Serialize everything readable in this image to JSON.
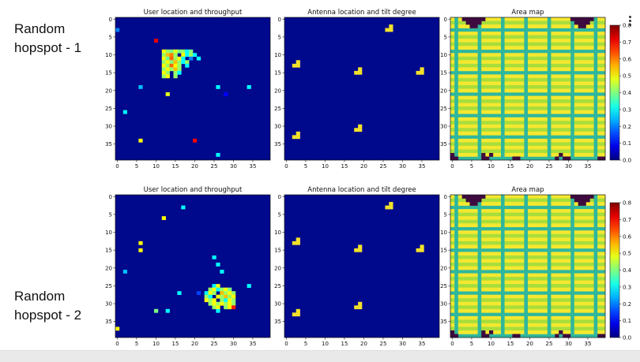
{
  "row_labels": [
    {
      "line1": "Random",
      "line2": "hopspot - 1"
    },
    {
      "line1": "Random",
      "line2": "hopspot - 2"
    }
  ],
  "colors": {
    "background_cell": "#00098c",
    "antenna": "#f2e12b",
    "area_a": "#f5e82f",
    "area_b": "#a8de3c",
    "area_c": "#2fb79d",
    "area_dark": "#3d0a3f"
  },
  "colormap": "jet",
  "icons": [
    "menu-dots-icon"
  ],
  "chart_data": [
    {
      "type": "heatmap",
      "row": 1,
      "title": "User location and throughput",
      "xlim": [
        0,
        39
      ],
      "ylim": [
        39,
        0
      ],
      "xticks": [
        0,
        5,
        10,
        15,
        20,
        25,
        30,
        35
      ],
      "yticks": [
        0,
        5,
        10,
        15,
        20,
        25,
        30,
        35
      ],
      "cells": [
        {
          "x": 0,
          "y": 3,
          "v": 0.2
        },
        {
          "x": 10,
          "y": 6,
          "v": 0.72
        },
        {
          "x": 12,
          "y": 9,
          "v": 0.5
        },
        {
          "x": 13,
          "y": 9,
          "v": 0.42
        },
        {
          "x": 14,
          "y": 9,
          "v": 0.4
        },
        {
          "x": 15,
          "y": 9,
          "v": 0.48
        },
        {
          "x": 16,
          "y": 9,
          "v": 0.4
        },
        {
          "x": 17,
          "y": 9,
          "v": 0.42
        },
        {
          "x": 18,
          "y": 9,
          "v": 0.3
        },
        {
          "x": 19,
          "y": 9,
          "v": 0.4
        },
        {
          "x": 12,
          "y": 10,
          "v": 0.42
        },
        {
          "x": 13,
          "y": 10,
          "v": 0.55
        },
        {
          "x": 14,
          "y": 10,
          "v": 0.6
        },
        {
          "x": 15,
          "y": 10,
          "v": 0.42
        },
        {
          "x": 17,
          "y": 10,
          "v": 0.5
        },
        {
          "x": 18,
          "y": 10,
          "v": 0.3
        },
        {
          "x": 19,
          "y": 10,
          "v": 0.42
        },
        {
          "x": 20,
          "y": 10,
          "v": 0.3
        },
        {
          "x": 12,
          "y": 11,
          "v": 0.5
        },
        {
          "x": 13,
          "y": 11,
          "v": 0.38
        },
        {
          "x": 14,
          "y": 11,
          "v": 0.62
        },
        {
          "x": 15,
          "y": 11,
          "v": 0.42
        },
        {
          "x": 16,
          "y": 11,
          "v": 0.5
        },
        {
          "x": 17,
          "y": 11,
          "v": 0.3
        },
        {
          "x": 19,
          "y": 11,
          "v": 0.2
        },
        {
          "x": 21,
          "y": 11,
          "v": 0.3
        },
        {
          "x": 12,
          "y": 12,
          "v": 0.42
        },
        {
          "x": 13,
          "y": 12,
          "v": 0.5
        },
        {
          "x": 14,
          "y": 12,
          "v": 0.4
        },
        {
          "x": 15,
          "y": 12,
          "v": 0.55
        },
        {
          "x": 16,
          "y": 12,
          "v": 0.42
        },
        {
          "x": 17,
          "y": 12,
          "v": 0.3
        },
        {
          "x": 18,
          "y": 12,
          "v": 0.42
        },
        {
          "x": 12,
          "y": 13,
          "v": 0.5
        },
        {
          "x": 13,
          "y": 13,
          "v": 0.42
        },
        {
          "x": 14,
          "y": 13,
          "v": 0.62
        },
        {
          "x": 15,
          "y": 13,
          "v": 0.5
        },
        {
          "x": 16,
          "y": 13,
          "v": 0.42
        },
        {
          "x": 18,
          "y": 13,
          "v": 0.3
        },
        {
          "x": 12,
          "y": 14,
          "v": 0.42
        },
        {
          "x": 13,
          "y": 14,
          "v": 0.5
        },
        {
          "x": 14,
          "y": 14,
          "v": 0.42
        },
        {
          "x": 15,
          "y": 14,
          "v": 0.55
        },
        {
          "x": 16,
          "y": 14,
          "v": 0.42
        },
        {
          "x": 12,
          "y": 15,
          "v": 0.5
        },
        {
          "x": 13,
          "y": 15,
          "v": 0.42
        },
        {
          "x": 15,
          "y": 15,
          "v": 0.42
        },
        {
          "x": 16,
          "y": 15,
          "v": 0.3
        },
        {
          "x": 12,
          "y": 16,
          "v": 0.42
        },
        {
          "x": 13,
          "y": 16,
          "v": 0.5
        },
        {
          "x": 15,
          "y": 16,
          "v": 0.42
        },
        {
          "x": 6,
          "y": 19,
          "v": 0.25
        },
        {
          "x": 26,
          "y": 19,
          "v": 0.3
        },
        {
          "x": 34,
          "y": 19,
          "v": 0.3
        },
        {
          "x": 28,
          "y": 21,
          "v": 0.1
        },
        {
          "x": 13,
          "y": 21,
          "v": 0.48
        },
        {
          "x": 2,
          "y": 26,
          "v": 0.3
        },
        {
          "x": 6,
          "y": 34,
          "v": 0.5
        },
        {
          "x": 20,
          "y": 34,
          "v": 0.7
        },
        {
          "x": 26,
          "y": 38,
          "v": 0.3
        }
      ]
    },
    {
      "type": "heatmap",
      "row": 1,
      "title": "Antenna location and tilt degree",
      "xlim": [
        0,
        39
      ],
      "ylim": [
        39,
        0
      ],
      "xticks": [
        0,
        5,
        10,
        15,
        20,
        25,
        30,
        35
      ],
      "yticks": [
        0,
        5,
        10,
        15,
        20,
        25,
        30,
        35
      ],
      "antennas": [
        {
          "x": 26,
          "y": 2
        },
        {
          "x": 2,
          "y": 12
        },
        {
          "x": 18,
          "y": 14
        },
        {
          "x": 34,
          "y": 14
        },
        {
          "x": 2,
          "y": 32
        },
        {
          "x": 18,
          "y": 30
        }
      ]
    },
    {
      "type": "heatmap",
      "row": 1,
      "title": "Area map",
      "xlim": [
        0,
        39
      ],
      "ylim": [
        39,
        0
      ],
      "xticks": [
        0,
        5,
        10,
        15,
        20,
        25,
        30,
        35
      ],
      "yticks": [
        0,
        5,
        10,
        15,
        20,
        25,
        30,
        35
      ],
      "colorbar": {
        "ticks": [
          "0.0",
          "0.1",
          "0.2",
          "0.3",
          "0.4",
          "0.5",
          "0.6",
          "0.7",
          "0.8"
        ],
        "range": [
          0,
          0.8
        ]
      }
    },
    {
      "type": "heatmap",
      "row": 2,
      "title": "User location and throughput",
      "xlim": [
        0,
        39
      ],
      "ylim": [
        39,
        0
      ],
      "xticks": [
        0,
        5,
        10,
        15,
        20,
        25,
        30,
        35
      ],
      "yticks": [
        0,
        5,
        10,
        15,
        20,
        25,
        30,
        35
      ],
      "cells": [
        {
          "x": 17,
          "y": 3,
          "v": 0.3
        },
        {
          "x": 12,
          "y": 6,
          "v": 0.5
        },
        {
          "x": 6,
          "y": 13,
          "v": 0.5
        },
        {
          "x": 6,
          "y": 15,
          "v": 0.5
        },
        {
          "x": 25,
          "y": 17,
          "v": 0.3
        },
        {
          "x": 26,
          "y": 19,
          "v": 0.3
        },
        {
          "x": 2,
          "y": 21,
          "v": 0.25
        },
        {
          "x": 27,
          "y": 21,
          "v": 0.3
        },
        {
          "x": 25,
          "y": 25,
          "v": 0.3
        },
        {
          "x": 26,
          "y": 25,
          "v": 0.5
        },
        {
          "x": 34,
          "y": 25,
          "v": 0.3
        },
        {
          "x": 24,
          "y": 26,
          "v": 0.42
        },
        {
          "x": 25,
          "y": 26,
          "v": 0.5
        },
        {
          "x": 26,
          "y": 26,
          "v": 0.3
        },
        {
          "x": 27,
          "y": 26,
          "v": 0.42
        },
        {
          "x": 28,
          "y": 26,
          "v": 0.5
        },
        {
          "x": 29,
          "y": 26,
          "v": 0.4
        },
        {
          "x": 16,
          "y": 27,
          "v": 0.3
        },
        {
          "x": 21,
          "y": 27,
          "v": 0.15
        },
        {
          "x": 23,
          "y": 27,
          "v": 0.3
        },
        {
          "x": 24,
          "y": 27,
          "v": 0.5
        },
        {
          "x": 25,
          "y": 27,
          "v": 0.42
        },
        {
          "x": 27,
          "y": 27,
          "v": 0.55
        },
        {
          "x": 28,
          "y": 27,
          "v": 0.42
        },
        {
          "x": 29,
          "y": 27,
          "v": 0.5
        },
        {
          "x": 30,
          "y": 27,
          "v": 0.42
        },
        {
          "x": 23,
          "y": 28,
          "v": 0.42
        },
        {
          "x": 24,
          "y": 28,
          "v": 0.3
        },
        {
          "x": 26,
          "y": 28,
          "v": 0.5
        },
        {
          "x": 27,
          "y": 28,
          "v": 0.42
        },
        {
          "x": 28,
          "y": 28,
          "v": 0.55
        },
        {
          "x": 29,
          "y": 28,
          "v": 0.42
        },
        {
          "x": 30,
          "y": 28,
          "v": 0.5
        },
        {
          "x": 23,
          "y": 29,
          "v": 0.5
        },
        {
          "x": 24,
          "y": 29,
          "v": 0.42
        },
        {
          "x": 25,
          "y": 29,
          "v": 0.5
        },
        {
          "x": 27,
          "y": 29,
          "v": 0.42
        },
        {
          "x": 28,
          "y": 29,
          "v": 0.3
        },
        {
          "x": 29,
          "y": 29,
          "v": 0.5
        },
        {
          "x": 30,
          "y": 29,
          "v": 0.42
        },
        {
          "x": 24,
          "y": 30,
          "v": 0.42
        },
        {
          "x": 25,
          "y": 30,
          "v": 0.5
        },
        {
          "x": 26,
          "y": 30,
          "v": 0.42
        },
        {
          "x": 27,
          "y": 30,
          "v": 0.5
        },
        {
          "x": 28,
          "y": 30,
          "v": 0.42
        },
        {
          "x": 29,
          "y": 30,
          "v": 0.5
        },
        {
          "x": 30,
          "y": 30,
          "v": 0.42
        },
        {
          "x": 25,
          "y": 31,
          "v": 0.42
        },
        {
          "x": 26,
          "y": 31,
          "v": 0.5
        },
        {
          "x": 28,
          "y": 31,
          "v": 0.42
        },
        {
          "x": 29,
          "y": 31,
          "v": 0.5
        },
        {
          "x": 30,
          "y": 31,
          "v": 0.68
        },
        {
          "x": 10,
          "y": 32,
          "v": 0.4
        },
        {
          "x": 13,
          "y": 32,
          "v": 0.3
        },
        {
          "x": 26,
          "y": 32,
          "v": 0.3
        },
        {
          "x": 0,
          "y": 37,
          "v": 0.5
        }
      ]
    },
    {
      "type": "heatmap",
      "row": 2,
      "title": "Antenna location and tilt degree",
      "xlim": [
        0,
        39
      ],
      "ylim": [
        39,
        0
      ],
      "xticks": [
        0,
        5,
        10,
        15,
        20,
        25,
        30,
        35
      ],
      "yticks": [
        0,
        5,
        10,
        15,
        20,
        25,
        30,
        35
      ],
      "antennas": [
        {
          "x": 26,
          "y": 2
        },
        {
          "x": 2,
          "y": 12
        },
        {
          "x": 18,
          "y": 14
        },
        {
          "x": 34,
          "y": 14
        },
        {
          "x": 2,
          "y": 32
        },
        {
          "x": 18,
          "y": 30
        }
      ]
    },
    {
      "type": "heatmap",
      "row": 2,
      "title": "Area map",
      "xlim": [
        0,
        39
      ],
      "ylim": [
        39,
        0
      ],
      "xticks": [
        0,
        5,
        10,
        15,
        20,
        25,
        30,
        35
      ],
      "yticks": [
        0,
        5,
        10,
        15,
        20,
        25,
        30,
        35
      ],
      "colorbar": {
        "ticks": [
          "0.0",
          "0.1",
          "0.2",
          "0.3",
          "0.4",
          "0.5",
          "0.6",
          "0.7",
          "0.8"
        ],
        "range": [
          0,
          0.8
        ]
      }
    }
  ]
}
